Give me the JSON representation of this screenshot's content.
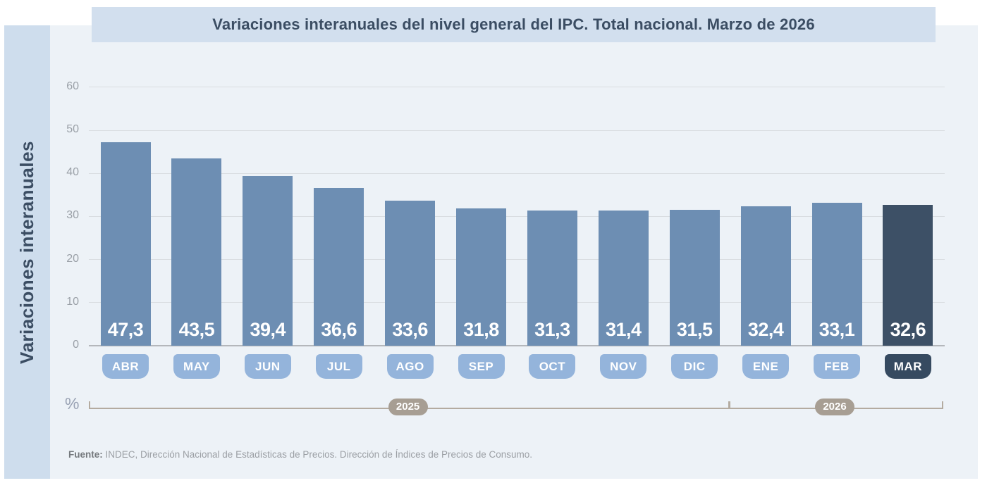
{
  "title": "Variaciones interanuales del nivel general del IPC. Total nacional. Marzo de 2026",
  "y_axis_label": "Variaciones interanuales",
  "unit_label": "%",
  "source": {
    "prefix": "Fuente:",
    "text": " INDEC, Dirección Nacional de Estadísticas de Precios. Dirección de Índices de Precios de Consumo."
  },
  "chart_data": {
    "type": "bar",
    "title": "Variaciones interanuales del nivel general del IPC. Total nacional. Marzo de 2026",
    "xlabel": "",
    "ylabel": "Variaciones interanuales",
    "unit": "%",
    "ylim": [
      0,
      60
    ],
    "yticks": [
      0,
      10,
      20,
      30,
      40,
      50,
      60
    ],
    "grid": true,
    "legend": false,
    "categories": [
      "ABR",
      "MAY",
      "JUN",
      "JUL",
      "AGO",
      "SEP",
      "OCT",
      "NOV",
      "DIC",
      "ENE",
      "FEB",
      "MAR"
    ],
    "values": [
      47.3,
      43.5,
      39.4,
      36.6,
      33.6,
      31.8,
      31.3,
      31.4,
      31.5,
      32.4,
      33.1,
      32.6
    ],
    "values_display": [
      "47,3",
      "43,5",
      "39,4",
      "36,6",
      "33,6",
      "31,8",
      "31,3",
      "31,4",
      "31,5",
      "32,4",
      "33,1",
      "32,6"
    ],
    "highlight_index": 11,
    "year_groups": [
      {
        "label": "2025",
        "start": 0,
        "end": 8
      },
      {
        "label": "2026",
        "start": 9,
        "end": 11
      }
    ],
    "colors": {
      "bar": "#6d8eb3",
      "bar_highlight": "#3d5066",
      "badge": "#94b4db",
      "badge_highlight": "#364a60",
      "year_pill": "#a79e93",
      "panel_bg": "#edf2f7",
      "band_bg": "#cedded",
      "title_band_bg": "#d2dfee",
      "title_text": "#3b4d63"
    }
  }
}
